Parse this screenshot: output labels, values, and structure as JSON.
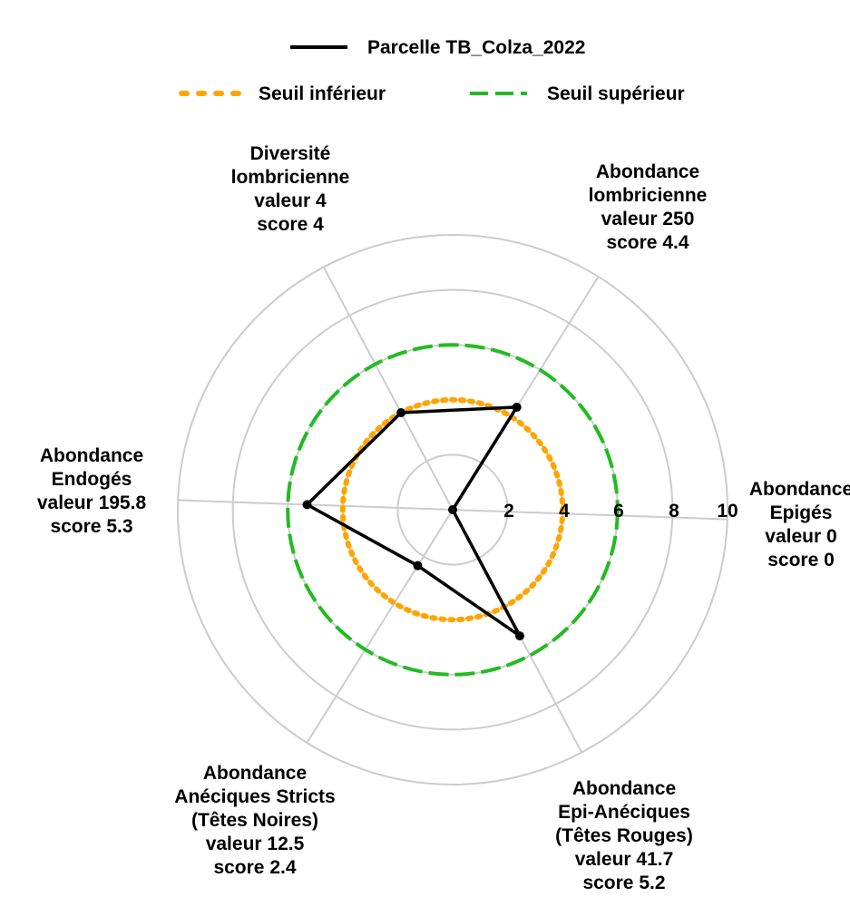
{
  "chart_data": {
    "type": "radar",
    "title": "",
    "rmax": 10,
    "ticks": [
      2,
      4,
      6,
      8,
      10
    ],
    "grid": true,
    "legend_position": "top",
    "axes": [
      {
        "lines": [
          "Abondance",
          "Epigés",
          "valeur 0",
          "score 0"
        ]
      },
      {
        "lines": [
          "Abondance",
          "lombricienne",
          "valeur 250",
          "score 4.4"
        ]
      },
      {
        "lines": [
          "Diversité",
          "lombricienne",
          "valeur 4",
          "score 4"
        ]
      },
      {
        "lines": [
          "Abondance",
          "Endogés",
          "valeur 195.8",
          "score 5.3"
        ]
      },
      {
        "lines": [
          "Abondance",
          "Anéciques Stricts",
          "(Têtes Noires)",
          "valeur 12.5",
          "score 2.4"
        ]
      },
      {
        "lines": [
          "Abondance",
          "Epi-Anéciques",
          "(Têtes Rouges)",
          "valeur 41.7",
          "score 5.2"
        ]
      }
    ],
    "series": [
      {
        "name": "Parcelle TB_Colza_2022",
        "color": "#000000",
        "style": "solid",
        "values": [
          0,
          4.4,
          4,
          5.3,
          2.4,
          5.2
        ]
      },
      {
        "name": "Seuil inférieur",
        "color": "#FFA500",
        "style": "dotted",
        "values": [
          4,
          4,
          4,
          4,
          4,
          4
        ]
      },
      {
        "name": "Seuil supérieur",
        "color": "#22BB22",
        "style": "dashed",
        "values": [
          6,
          6,
          6,
          6,
          6,
          6
        ]
      }
    ]
  }
}
